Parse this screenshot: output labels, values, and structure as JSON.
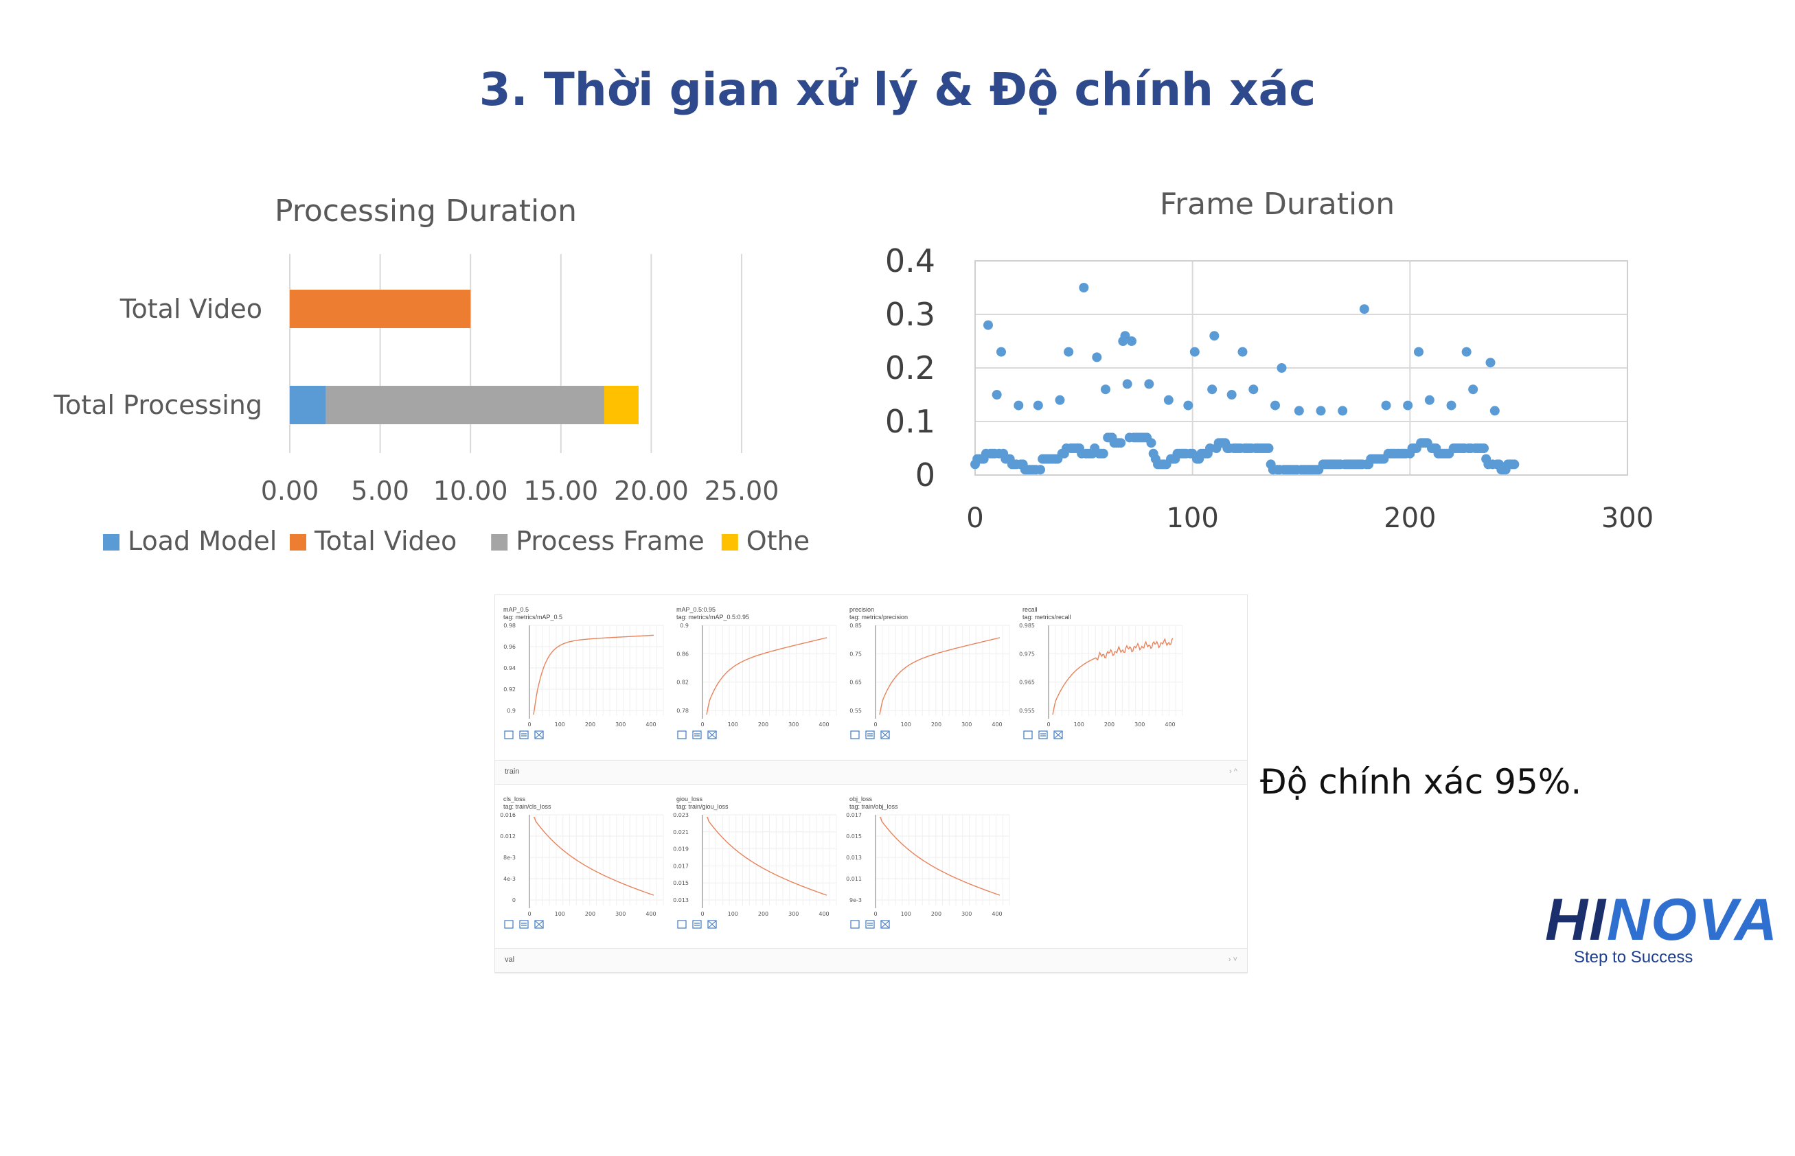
{
  "page": {
    "title": "3. Thời gian xử lý & Độ chính xác"
  },
  "colors": {
    "title": "#2e4a8c",
    "load_model": "#5b9bd5",
    "total_video": "#ed7d31",
    "process_frame": "#a5a5a5",
    "others": "#ffc000",
    "scatter": "#5b9bd5",
    "mini_line": "#e8825a"
  },
  "chart_data": [
    {
      "type": "bar",
      "orientation": "horizontal",
      "stacked": true,
      "title": "Processing Duration",
      "categories": [
        "Total Video",
        "Total Processing"
      ],
      "series": [
        {
          "name": "Load Model",
          "values": [
            0,
            2.0
          ]
        },
        {
          "name": "Total Video",
          "values": [
            10.0,
            0
          ]
        },
        {
          "name": "Process Frame",
          "values": [
            0,
            15.4
          ]
        },
        {
          "name": "Others",
          "values": [
            0,
            1.9
          ]
        }
      ],
      "xlim": [
        0,
        25
      ],
      "xticks": [
        "0.00",
        "5.00",
        "10.00",
        "15.00",
        "20.00",
        "25.00"
      ],
      "grid": true,
      "legend": "bottom"
    },
    {
      "type": "scatter",
      "title": "Frame Duration",
      "xlim": [
        0,
        300
      ],
      "ylim": [
        0,
        0.4
      ],
      "xticks": [
        "0",
        "100",
        "200",
        "300"
      ],
      "yticks": [
        "0",
        "0.1",
        "0.2",
        "0.3",
        "0.4"
      ],
      "grid": true,
      "points": [
        [
          0,
          0.02
        ],
        [
          1,
          0.03
        ],
        [
          2,
          0.03
        ],
        [
          3,
          0.03
        ],
        [
          4,
          0.03
        ],
        [
          5,
          0.04
        ],
        [
          6,
          0.28
        ],
        [
          7,
          0.04
        ],
        [
          8,
          0.04
        ],
        [
          9,
          0.04
        ],
        [
          10,
          0.15
        ],
        [
          11,
          0.04
        ],
        [
          12,
          0.23
        ],
        [
          13,
          0.04
        ],
        [
          14,
          0.03
        ],
        [
          15,
          0.03
        ],
        [
          16,
          0.03
        ],
        [
          17,
          0.02
        ],
        [
          18,
          0.02
        ],
        [
          19,
          0.02
        ],
        [
          20,
          0.13
        ],
        [
          21,
          0.02
        ],
        [
          22,
          0.02
        ],
        [
          23,
          0.01
        ],
        [
          24,
          0.01
        ],
        [
          25,
          0.01
        ],
        [
          26,
          0.01
        ],
        [
          27,
          0.01
        ],
        [
          28,
          0.01
        ],
        [
          29,
          0.13
        ],
        [
          30,
          0.01
        ],
        [
          31,
          0.03
        ],
        [
          32,
          0.03
        ],
        [
          33,
          0.03
        ],
        [
          34,
          0.03
        ],
        [
          35,
          0.03
        ],
        [
          36,
          0.03
        ],
        [
          37,
          0.03
        ],
        [
          38,
          0.03
        ],
        [
          39,
          0.14
        ],
        [
          40,
          0.04
        ],
        [
          41,
          0.04
        ],
        [
          42,
          0.05
        ],
        [
          43,
          0.23
        ],
        [
          44,
          0.05
        ],
        [
          45,
          0.05
        ],
        [
          46,
          0.05
        ],
        [
          47,
          0.05
        ],
        [
          48,
          0.05
        ],
        [
          49,
          0.04
        ],
        [
          50,
          0.35
        ],
        [
          51,
          0.04
        ],
        [
          52,
          0.04
        ],
        [
          53,
          0.04
        ],
        [
          54,
          0.04
        ],
        [
          55,
          0.05
        ],
        [
          56,
          0.22
        ],
        [
          57,
          0.04
        ],
        [
          58,
          0.04
        ],
        [
          59,
          0.04
        ],
        [
          60,
          0.16
        ],
        [
          61,
          0.07
        ],
        [
          62,
          0.07
        ],
        [
          63,
          0.07
        ],
        [
          64,
          0.06
        ],
        [
          65,
          0.06
        ],
        [
          66,
          0.06
        ],
        [
          67,
          0.06
        ],
        [
          68,
          0.25
        ],
        [
          69,
          0.26
        ],
        [
          70,
          0.17
        ],
        [
          71,
          0.07
        ],
        [
          72,
          0.25
        ],
        [
          73,
          0.07
        ],
        [
          74,
          0.07
        ],
        [
          75,
          0.07
        ],
        [
          76,
          0.07
        ],
        [
          77,
          0.07
        ],
        [
          78,
          0.07
        ],
        [
          79,
          0.07
        ],
        [
          80,
          0.17
        ],
        [
          81,
          0.06
        ],
        [
          82,
          0.04
        ],
        [
          83,
          0.03
        ],
        [
          84,
          0.02
        ],
        [
          85,
          0.02
        ],
        [
          86,
          0.02
        ],
        [
          87,
          0.02
        ],
        [
          88,
          0.02
        ],
        [
          89,
          0.14
        ],
        [
          90,
          0.03
        ],
        [
          91,
          0.03
        ],
        [
          92,
          0.03
        ],
        [
          93,
          0.04
        ],
        [
          94,
          0.04
        ],
        [
          95,
          0.04
        ],
        [
          96,
          0.04
        ],
        [
          97,
          0.04
        ],
        [
          98,
          0.13
        ],
        [
          99,
          0.04
        ],
        [
          100,
          0.04
        ],
        [
          101,
          0.23
        ],
        [
          102,
          0.03
        ],
        [
          103,
          0.03
        ],
        [
          104,
          0.04
        ],
        [
          105,
          0.04
        ],
        [
          106,
          0.04
        ],
        [
          107,
          0.04
        ],
        [
          108,
          0.05
        ],
        [
          109,
          0.16
        ],
        [
          110,
          0.26
        ],
        [
          111,
          0.05
        ],
        [
          112,
          0.06
        ],
        [
          113,
          0.06
        ],
        [
          114,
          0.06
        ],
        [
          115,
          0.06
        ],
        [
          116,
          0.05
        ],
        [
          117,
          0.05
        ],
        [
          118,
          0.15
        ],
        [
          119,
          0.05
        ],
        [
          120,
          0.05
        ],
        [
          121,
          0.05
        ],
        [
          122,
          0.05
        ],
        [
          123,
          0.23
        ],
        [
          124,
          0.05
        ],
        [
          125,
          0.05
        ],
        [
          126,
          0.05
        ],
        [
          127,
          0.05
        ],
        [
          128,
          0.16
        ],
        [
          129,
          0.05
        ],
        [
          130,
          0.05
        ],
        [
          131,
          0.05
        ],
        [
          132,
          0.05
        ],
        [
          133,
          0.05
        ],
        [
          134,
          0.05
        ],
        [
          135,
          0.05
        ],
        [
          136,
          0.02
        ],
        [
          137,
          0.01
        ],
        [
          138,
          0.13
        ],
        [
          139,
          0.01
        ],
        [
          140,
          0.01
        ],
        [
          141,
          0.2
        ],
        [
          142,
          0.01
        ],
        [
          143,
          0.01
        ],
        [
          144,
          0.01
        ],
        [
          145,
          0.01
        ],
        [
          146,
          0.01
        ],
        [
          147,
          0.01
        ],
        [
          148,
          0.01
        ],
        [
          149,
          0.12
        ],
        [
          150,
          0.01
        ],
        [
          151,
          0.01
        ],
        [
          152,
          0.01
        ],
        [
          153,
          0.01
        ],
        [
          154,
          0.01
        ],
        [
          155,
          0.01
        ],
        [
          156,
          0.01
        ],
        [
          157,
          0.01
        ],
        [
          158,
          0.01
        ],
        [
          159,
          0.12
        ],
        [
          160,
          0.02
        ],
        [
          161,
          0.02
        ],
        [
          162,
          0.02
        ],
        [
          163,
          0.02
        ],
        [
          164,
          0.02
        ],
        [
          165,
          0.02
        ],
        [
          166,
          0.02
        ],
        [
          167,
          0.02
        ],
        [
          168,
          0.02
        ],
        [
          169,
          0.12
        ],
        [
          170,
          0.02
        ],
        [
          171,
          0.02
        ],
        [
          172,
          0.02
        ],
        [
          173,
          0.02
        ],
        [
          174,
          0.02
        ],
        [
          175,
          0.02
        ],
        [
          176,
          0.02
        ],
        [
          177,
          0.02
        ],
        [
          178,
          0.02
        ],
        [
          179,
          0.31
        ],
        [
          180,
          0.02
        ],
        [
          181,
          0.02
        ],
        [
          182,
          0.03
        ],
        [
          183,
          0.03
        ],
        [
          184,
          0.03
        ],
        [
          185,
          0.03
        ],
        [
          186,
          0.03
        ],
        [
          187,
          0.03
        ],
        [
          188,
          0.03
        ],
        [
          189,
          0.13
        ],
        [
          190,
          0.04
        ],
        [
          191,
          0.04
        ],
        [
          192,
          0.04
        ],
        [
          193,
          0.04
        ],
        [
          194,
          0.04
        ],
        [
          195,
          0.04
        ],
        [
          196,
          0.04
        ],
        [
          197,
          0.04
        ],
        [
          198,
          0.04
        ],
        [
          199,
          0.13
        ],
        [
          200,
          0.04
        ],
        [
          201,
          0.05
        ],
        [
          202,
          0.05
        ],
        [
          203,
          0.05
        ],
        [
          204,
          0.23
        ],
        [
          205,
          0.06
        ],
        [
          206,
          0.06
        ],
        [
          207,
          0.06
        ],
        [
          208,
          0.06
        ],
        [
          209,
          0.14
        ],
        [
          210,
          0.05
        ],
        [
          211,
          0.05
        ],
        [
          212,
          0.05
        ],
        [
          213,
          0.04
        ],
        [
          214,
          0.04
        ],
        [
          215,
          0.04
        ],
        [
          216,
          0.04
        ],
        [
          217,
          0.04
        ],
        [
          218,
          0.04
        ],
        [
          219,
          0.13
        ],
        [
          220,
          0.05
        ],
        [
          221,
          0.05
        ],
        [
          222,
          0.05
        ],
        [
          223,
          0.05
        ],
        [
          224,
          0.05
        ],
        [
          225,
          0.05
        ],
        [
          226,
          0.23
        ],
        [
          227,
          0.05
        ],
        [
          228,
          0.05
        ],
        [
          229,
          0.16
        ],
        [
          230,
          0.05
        ],
        [
          231,
          0.05
        ],
        [
          232,
          0.05
        ],
        [
          233,
          0.05
        ],
        [
          234,
          0.05
        ],
        [
          235,
          0.03
        ],
        [
          236,
          0.02
        ],
        [
          237,
          0.21
        ],
        [
          238,
          0.02
        ],
        [
          239,
          0.12
        ],
        [
          240,
          0.02
        ],
        [
          241,
          0.02
        ],
        [
          242,
          0.01
        ],
        [
          243,
          0.01
        ],
        [
          244,
          0.01
        ],
        [
          245,
          0.02
        ],
        [
          246,
          0.02
        ],
        [
          247,
          0.02
        ],
        [
          248,
          0.02
        ]
      ]
    }
  ],
  "training_panel": {
    "charts": [
      {
        "title": "mAP_0.5",
        "tag": "tag: metrics/mAP_0.5",
        "yticks": [
          "0.98",
          "0.96",
          "0.94",
          "0.92",
          "0.9"
        ],
        "xticks": [
          "0",
          "100",
          "200",
          "300",
          "400"
        ],
        "curve": "rise_sat"
      },
      {
        "title": "mAP_0.5:0.95",
        "tag": "tag: metrics/mAP_0.5:0.95",
        "yticks": [
          "0.9",
          "0.86",
          "0.82",
          "0.78"
        ],
        "xticks": [
          "0",
          "100",
          "200",
          "300",
          "400"
        ],
        "curve": "rise_slow"
      },
      {
        "title": "precision",
        "tag": "tag: metrics/precision",
        "yticks": [
          "0.85",
          "0.75",
          "0.65",
          "0.55"
        ],
        "xticks": [
          "0",
          "100",
          "200",
          "300",
          "400"
        ],
        "curve": "rise_slow"
      },
      {
        "title": "recall",
        "tag": "tag: metrics/recall",
        "yticks": [
          "0.985",
          "0.975",
          "0.965",
          "0.955"
        ],
        "xticks": [
          "0",
          "100",
          "200",
          "300",
          "400"
        ],
        "curve": "rise_noisy"
      },
      {
        "title": "cls_loss",
        "tag": "tag: train/cls_loss",
        "yticks": [
          "0.016",
          "0.012",
          "8e-3",
          "4e-3",
          "0"
        ],
        "xticks": [
          "0",
          "100",
          "200",
          "300",
          "400"
        ],
        "curve": "decay"
      },
      {
        "title": "giou_loss",
        "tag": "tag: train/giou_loss",
        "yticks": [
          "0.023",
          "0.021",
          "0.019",
          "0.017",
          "0.015",
          "0.013"
        ],
        "xticks": [
          "0",
          "100",
          "200",
          "300",
          "400"
        ],
        "curve": "decay"
      },
      {
        "title": "obj_loss",
        "tag": "tag: train/obj_loss",
        "yticks": [
          "0.017",
          "0.015",
          "0.013",
          "0.011",
          "9e-3"
        ],
        "xticks": [
          "0",
          "100",
          "200",
          "300",
          "400"
        ],
        "curve": "decay"
      }
    ],
    "section_train": "train",
    "section_val": "val",
    "chevron": "› ^",
    "chevron_val": "› ˅",
    "icons": [
      "expand-icon",
      "list-icon",
      "fit-icon"
    ]
  },
  "accuracy_text": "Độ chính xác 95%.",
  "logo": {
    "hi": "HI",
    "nova": "NOVA",
    "tagline": "Step to Success"
  }
}
